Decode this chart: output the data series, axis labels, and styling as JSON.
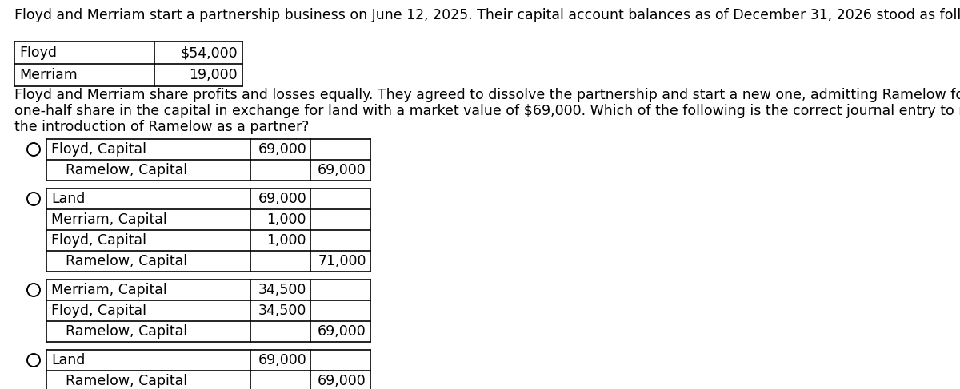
{
  "title": "Floyd and Merriam start a partnership business on June 12, 2025. Their capital account balances as of December 31, 2026 stood as follows:",
  "capital_table": {
    "rows": [
      [
        "Floyd",
        "$54,000"
      ],
      [
        "Merriam",
        "19,000"
      ]
    ]
  },
  "body_text": "Floyd and Merriam share profits and losses equally. They agreed to dissolve the partnership and start a new one, admitting Ramelow for\none-half share in the capital in exchange for land with a market value of $69,000. Which of the following is the correct journal entry to record\nthe introduction of Ramelow as a partner?",
  "options": [
    {
      "entries": [
        {
          "account": "Floyd, Capital",
          "indent": false,
          "debit": "69,000",
          "credit": ""
        },
        {
          "account": "Ramelow, Capital",
          "indent": true,
          "debit": "",
          "credit": "69,000"
        }
      ]
    },
    {
      "entries": [
        {
          "account": "Land",
          "indent": false,
          "debit": "69,000",
          "credit": ""
        },
        {
          "account": "Merriam, Capital",
          "indent": false,
          "debit": "1,000",
          "credit": ""
        },
        {
          "account": "Floyd, Capital",
          "indent": false,
          "debit": "1,000",
          "credit": ""
        },
        {
          "account": "Ramelow, Capital",
          "indent": true,
          "debit": "",
          "credit": "71,000"
        }
      ]
    },
    {
      "entries": [
        {
          "account": "Merriam, Capital",
          "indent": false,
          "debit": "34,500",
          "credit": ""
        },
        {
          "account": "Floyd, Capital",
          "indent": false,
          "debit": "34,500",
          "credit": ""
        },
        {
          "account": "Ramelow, Capital",
          "indent": true,
          "debit": "",
          "credit": "69,000"
        }
      ]
    },
    {
      "entries": [
        {
          "account": "Land",
          "indent": false,
          "debit": "69,000",
          "credit": ""
        },
        {
          "account": "Ramelow, Capital",
          "indent": true,
          "debit": "",
          "credit": "69,000"
        }
      ]
    }
  ],
  "bg_color": "#ffffff",
  "text_color": "#000000",
  "title_fontsize": 12.5,
  "body_fontsize": 12.5,
  "table_fontsize": 12.5
}
